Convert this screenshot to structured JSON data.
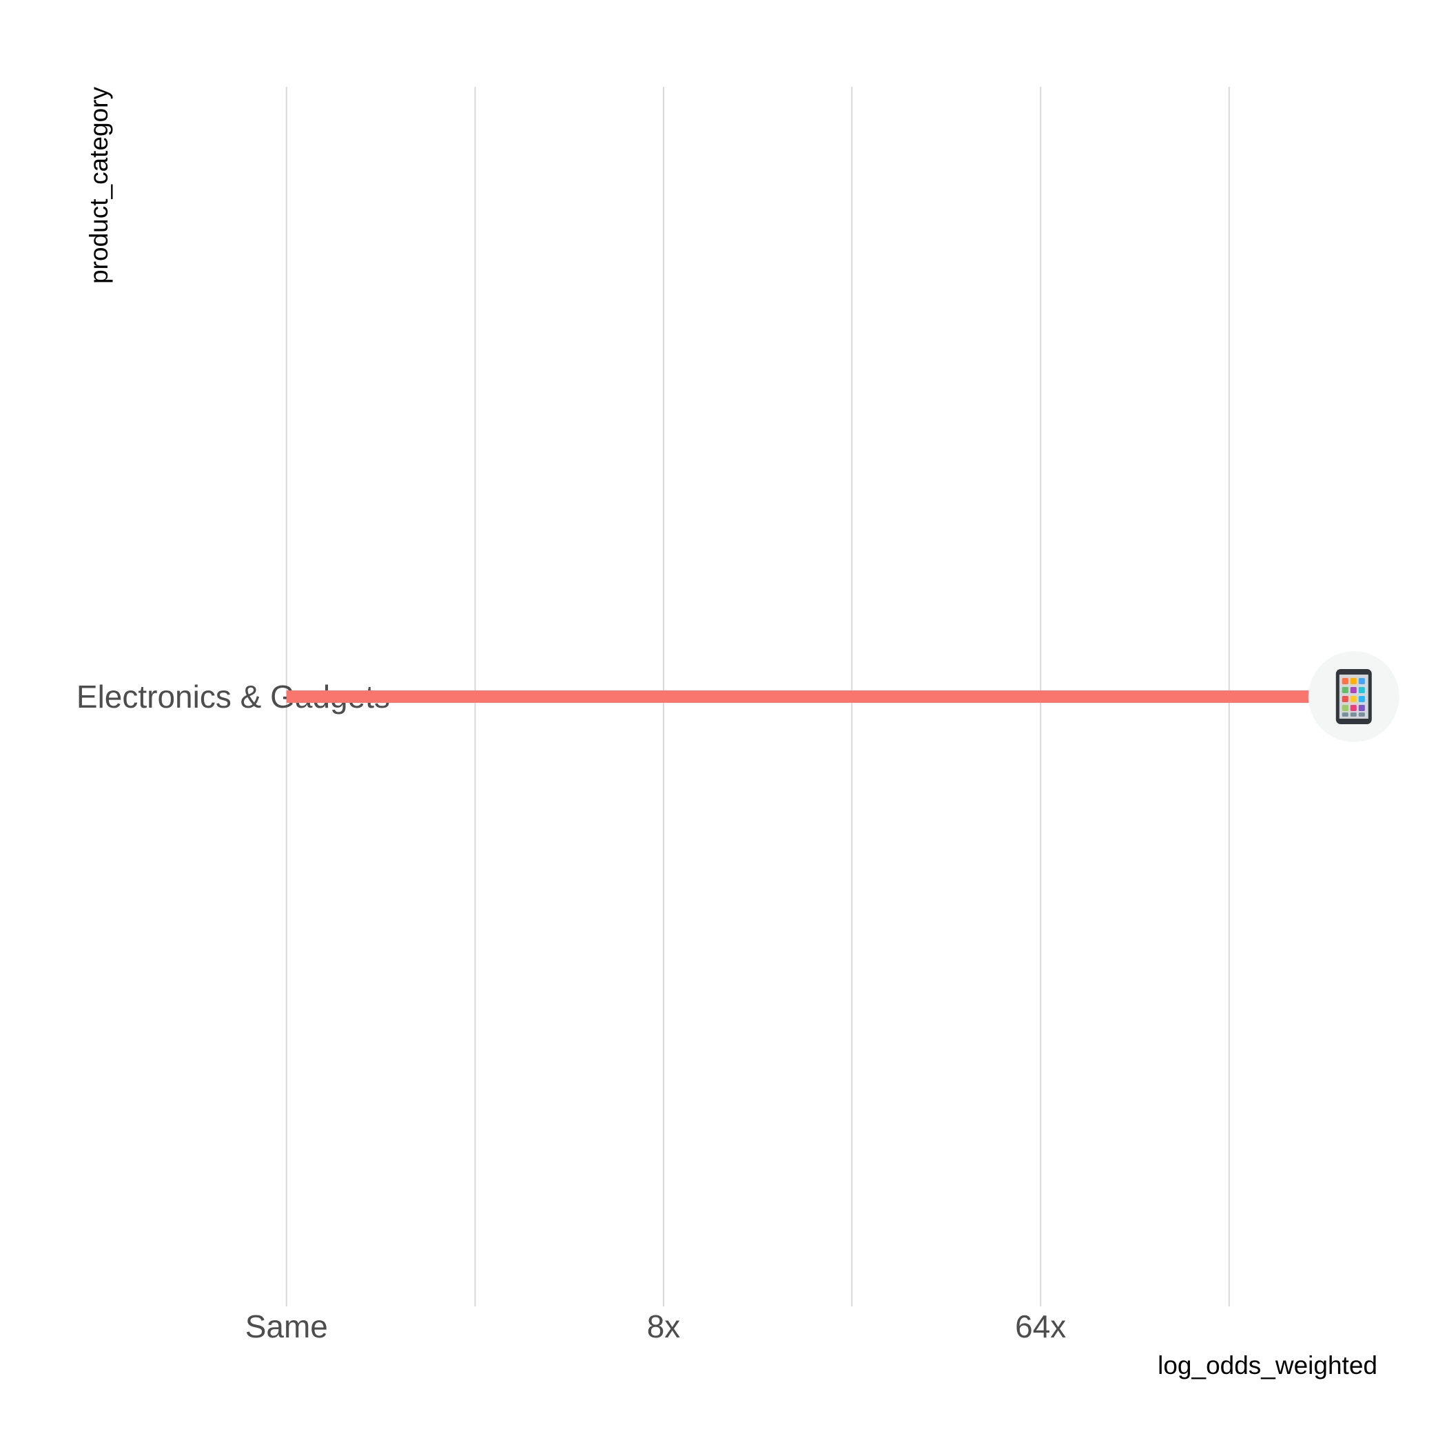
{
  "chart_data": {
    "type": "bar",
    "orientation": "horizontal",
    "scale": "log2",
    "xlabel": "log_odds_weighted",
    "ylabel": "product_category",
    "x_ticks": [
      {
        "value": 1,
        "label": "Same"
      },
      {
        "value": 8,
        "label": "8x"
      },
      {
        "value": 64,
        "label": "64x"
      }
    ],
    "x_minor_gridlines": [
      2.83,
      22.6,
      181
    ],
    "xlim": [
      0.39,
      410
    ],
    "categories": [
      "Electronics & Gadgets"
    ],
    "values": [
      360
    ],
    "point_icons": [
      "mobile-phone-icon"
    ],
    "colors": {
      "bar": "#F8766D",
      "icon_halo": "#F4F6F6",
      "grid": "#D9D9D9",
      "tick_text": "#4D4D4D",
      "title_text": "#000000"
    },
    "grid": true,
    "legend": "none"
  }
}
